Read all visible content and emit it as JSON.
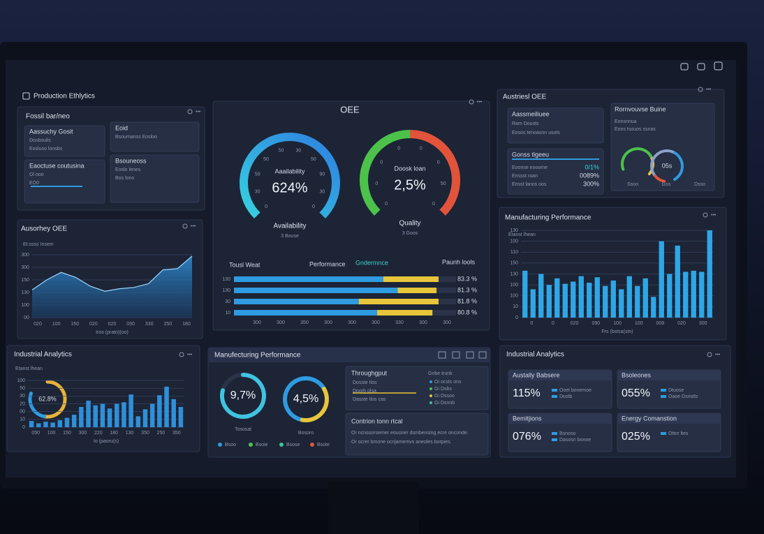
{
  "header": {
    "title": "Production Ethlytics"
  },
  "status_panel": {
    "title": "Fossil bar/neo",
    "cards": [
      [
        "Aassuchy Gosit",
        "Dosboulis",
        "Eosluso lonsbs"
      ],
      [
        "Eoid",
        "Bsoumanss Eosloo"
      ],
      [
        "Eaoctuse coutusina",
        "Ol ooo",
        "EO0"
      ],
      [
        "Bsouneoss",
        "Eoslo lenes",
        "Bos lono"
      ]
    ]
  },
  "trend_chart": {
    "title": "Ausorhey OEE",
    "subtitle": "Et:ssss Insem",
    "x_title": "Iros (prato)(oo)",
    "x_labels": [
      "020",
      "100",
      "150",
      "020",
      "020",
      "030",
      "330",
      "250",
      "180"
    ],
    "ylim": [
      0,
      5
    ],
    "yticks": [
      {
        "value": 0,
        "label": "00"
      },
      {
        "value": 1,
        "label": "100"
      },
      {
        "value": 2,
        "label": "130"
      },
      {
        "value": 3,
        "label": "150"
      },
      {
        "value": 4,
        "label": "300"
      },
      {
        "value": 5,
        "label": "300"
      }
    ],
    "values": [
      2.2,
      3.0,
      3.6,
      3.2,
      2.5,
      2.1,
      2.3,
      2.4,
      2.7,
      3.8,
      3.9,
      4.9
    ],
    "color": "#2f8fd8"
  },
  "oee": {
    "title": "OEE",
    "gauges": [
      {
        "top": "Aaailability",
        "value_label": "624%",
        "bottom": "Availability",
        "sub": "3 Bouse",
        "ticks": [
          "0",
          "30",
          "50",
          "50",
          "50",
          "30",
          "50",
          "90",
          "30",
          "0"
        ]
      },
      {
        "top": "Doosk loan",
        "value_label": "2,5%",
        "bottom": "Quality",
        "sub": "3 Goos",
        "ticks": [
          "0",
          "0",
          "0",
          "0",
          "0",
          "0",
          "50",
          "0"
        ]
      }
    ],
    "bars": {
      "headers": [
        "Tousl Weat",
        "Paunh lools"
      ],
      "categories": [
        "130",
        "130",
        "30",
        "10"
      ],
      "series": [
        {
          "name": "Performance",
          "color": "#2f9be0",
          "values": [
            73,
            80,
            61,
            70
          ]
        },
        {
          "name": "Gndermnce",
          "color": "#e8c53a",
          "values": [
            27,
            19,
            39,
            27
          ]
        }
      ],
      "xlim": [
        0,
        100
      ],
      "end_labels": [
        "83.3 %",
        "81.3 %",
        "81.8 %",
        "80.8 %"
      ],
      "x_labels": [
        "300",
        "300",
        "350",
        "300",
        "300",
        "300",
        "330",
        "300",
        "300"
      ]
    }
  },
  "mfg_center": {
    "title": "Manufecturing Performance",
    "donuts": [
      {
        "value_label": "9,7%",
        "caption": "Tososal"
      },
      {
        "value_label": "4,5%",
        "caption": "Bosoro"
      }
    ],
    "legend": [
      "Bsoo",
      "Bsoie",
      "Bsose",
      "Bsote"
    ],
    "throughput": {
      "title": "Throughgput",
      "right_title": "Gnbe trunk",
      "left": [
        "Dosste tlos",
        "Doorb olsa",
        "Dasste tlos cas"
      ],
      "right": [
        "Oi ocsts ons",
        "Gi Dsbs",
        "Gi Dssoo",
        "Gi Dsnnb"
      ]
    },
    "note": {
      "title": "Contrion tonn rtcal",
      "lines": [
        "Or ncnsoorsemer eouoner dsmbensing ecre onconde.",
        "Or ocrer bmone ocnjamemvs aneoles borpies."
      ]
    }
  },
  "industrial_left": {
    "title": "Industrial Analytics",
    "subtitle": "Etanst lhean",
    "donut_label": "62.8%",
    "x_title": "Io (paoru(s)",
    "x_labels": [
      "050",
      "100",
      "150",
      "300",
      "220",
      "180",
      "130",
      "350",
      "250",
      "350"
    ],
    "ylim": [
      0,
      6
    ],
    "yticks": [
      {
        "value": 0,
        "label": "0"
      },
      {
        "value": 1,
        "label": "10"
      },
      {
        "value": 2,
        "label": "00"
      },
      {
        "value": 3,
        "label": "20"
      },
      {
        "value": 4,
        "label": "30"
      },
      {
        "value": 5,
        "label": "50"
      },
      {
        "value": 6,
        "label": "100"
      }
    ],
    "values": [
      0.8,
      0.5,
      0.7,
      0.6,
      0.9,
      1.2,
      1.6,
      2.6,
      3.4,
      2.8,
      3.0,
      2.4,
      3.0,
      3.2,
      4.2,
      1.4,
      2.3,
      3.0,
      4.1,
      5.2,
      3.6,
      2.6
    ],
    "color": "#2f8fd8"
  },
  "oee_right": {
    "title": "Austriesl OEE",
    "card1": [
      "Aassmeiliuee",
      "Ram Dousts",
      "Eosos tenoasnn usots"
    ],
    "card2": {
      "title": "Gonss tlgeeu",
      "rows": [
        [
          "Eoonse eooome",
          "0/1%"
        ],
        [
          "Enssst roan",
          "0089%"
        ],
        [
          "Ensst lanos oos",
          "300%"
        ]
      ]
    },
    "card3": {
      "title": "Rornvouvse Buine",
      "lines": [
        "Eonsnnua",
        "Eoos tsouos ssnas"
      ],
      "gauge_label": "05s",
      "foot": [
        "Ssoo",
        "Gss",
        "Dsso"
      ]
    }
  },
  "mfg_right": {
    "title": "Manufacturing Performance",
    "subtitle": "Etanst lhean",
    "x_title": "Frs (bstsa(stn)",
    "x_labels": [
      "0",
      "0",
      "020",
      "090",
      "100",
      "100",
      "008",
      "020",
      "300"
    ],
    "ylim": [
      0,
      8
    ],
    "yticks": [
      {
        "value": 0,
        "label": "0"
      },
      {
        "value": 1,
        "label": "10"
      },
      {
        "value": 2,
        "label": "100"
      },
      {
        "value": 3,
        "label": "100"
      },
      {
        "value": 4,
        "label": "130"
      },
      {
        "value": 5,
        "label": "150"
      },
      {
        "value": 6,
        "label": "110"
      },
      {
        "value": 7,
        "label": "100"
      },
      {
        "value": 8,
        "label": "130"
      }
    ],
    "values": [
      4.3,
      2.6,
      4.0,
      3.0,
      3.6,
      3.1,
      3.3,
      3.8,
      3.2,
      3.7,
      2.9,
      3.4,
      2.6,
      3.8,
      2.9,
      3.6,
      1.9,
      7.0,
      4.0,
      6.6,
      4.2,
      4.3,
      4.2,
      8.0
    ],
    "color": "#2fa6e6"
  },
  "industrial_right": {
    "title": "Industrial Analytics",
    "cards": [
      {
        "title": "Austally Babsere",
        "value_label": "115%",
        "lines": [
          "Ooel bonemoe",
          "Dostb"
        ]
      },
      {
        "title": "Bsoleones",
        "value_label": "055%",
        "lines": [
          "Dtuose",
          "Oaoe Dsnstts"
        ]
      },
      {
        "title": "Bemitjions",
        "value_label": "076%",
        "lines": [
          "Bsnoso",
          "Dasosn bonoe"
        ]
      },
      {
        "title": "Energy Comanstion",
        "value_label": "025%",
        "lines": [
          "Ottnr ltes"
        ]
      }
    ]
  }
}
